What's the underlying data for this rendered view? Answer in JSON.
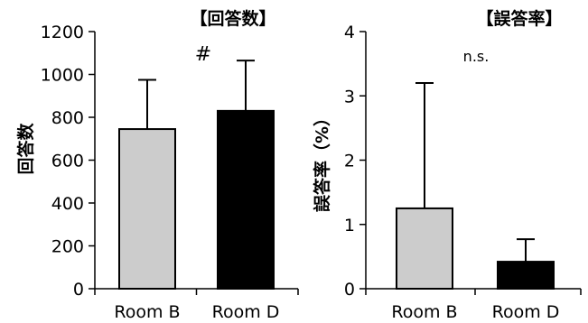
{
  "chart_data": [
    {
      "type": "bar",
      "title": "【回答数】",
      "ylabel": "回答数",
      "xlabel": "",
      "categories": [
        "Room B",
        "Room D"
      ],
      "values": [
        745,
        830
      ],
      "errors": [
        230,
        235
      ],
      "ylim": [
        0,
        1200
      ],
      "yticks": [
        0,
        200,
        400,
        600,
        800,
        1000,
        1200
      ],
      "bar_colors": [
        "#cccccc",
        "#000000"
      ],
      "annotation": "#",
      "grid": false
    },
    {
      "type": "bar",
      "title": "【誤答率】",
      "ylabel": "誤答率（%）",
      "xlabel": "",
      "categories": [
        "Room B",
        "Room D"
      ],
      "values": [
        1.25,
        0.42
      ],
      "errors": [
        1.95,
        0.35
      ],
      "ylim": [
        0,
        4
      ],
      "yticks": [
        0,
        1,
        2,
        3,
        4
      ],
      "bar_colors": [
        "#cccccc",
        "#000000"
      ],
      "annotation": "n.s.",
      "grid": false
    }
  ]
}
